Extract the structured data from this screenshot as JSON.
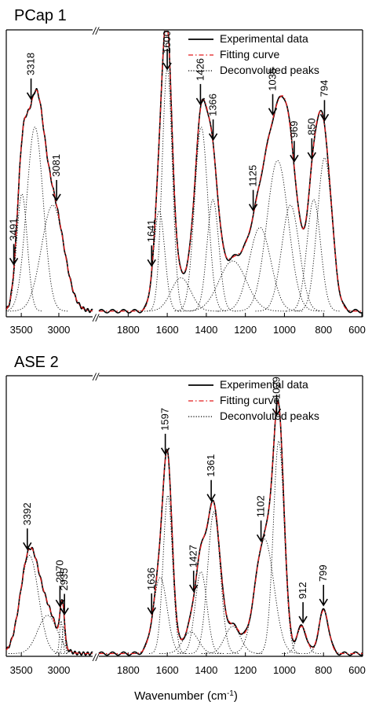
{
  "chart_data": {
    "type": "line",
    "xlabel": "Wavenumber (cm",
    "xlabel_sup": "-1",
    "xlabel_close": ")",
    "legend": [
      {
        "label": "Experimental data",
        "style": "solid",
        "color": "#000000"
      },
      {
        "label": "Fitting curve",
        "style": "dash-dot",
        "color": "#e41a1c"
      },
      {
        "label": "Deconvoluted peaks",
        "style": "dotted",
        "color": "#000000"
      }
    ],
    "axis_break_marker": "//",
    "panels": [
      {
        "title": "PCap 1",
        "x_left_range": [
          3700,
          2550
        ],
        "x_right_range": [
          1950,
          600
        ],
        "x_ticks_left": [
          "3500",
          "3000"
        ],
        "x_ticks_right": [
          "1800",
          "1600",
          "1400",
          "1200",
          "1000",
          "800",
          "600"
        ],
        "baseline": 0.02,
        "peaks": [
          {
            "center": 3491,
            "height": 0.42,
            "width": 70
          },
          {
            "center": 3318,
            "height": 0.66,
            "width": 110
          },
          {
            "center": 3081,
            "height": 0.38,
            "width": 150
          },
          {
            "center": 1641,
            "height": 0.36,
            "width": 28
          },
          {
            "center": 1600,
            "height": 0.87,
            "width": 26
          },
          {
            "center": 1426,
            "height": 0.66,
            "width": 34
          },
          {
            "center": 1366,
            "height": 0.4,
            "width": 30
          },
          {
            "center": 1125,
            "height": 0.3,
            "width": 55
          },
          {
            "center": 1035,
            "height": 0.54,
            "width": 55
          },
          {
            "center": 969,
            "height": 0.38,
            "width": 45
          },
          {
            "center": 850,
            "height": 0.4,
            "width": 35
          },
          {
            "center": 794,
            "height": 0.55,
            "width": 38
          },
          {
            "center": 1265,
            "height": 0.18,
            "width": 70
          },
          {
            "center": 1530,
            "height": 0.12,
            "width": 50
          }
        ],
        "annotations": [
          {
            "label": "3491",
            "x": 3600
          },
          {
            "label": "3318",
            "x": 3370
          },
          {
            "label": "3081",
            "x": 3030
          },
          {
            "label": "1641",
            "x": 1680
          },
          {
            "label": "1600",
            "x": 1600
          },
          {
            "label": "1426",
            "x": 1430
          },
          {
            "label": "1366",
            "x": 1365
          },
          {
            "label": "1125",
            "x": 1160
          },
          {
            "label": "1035",
            "x": 1060
          },
          {
            "label": "969",
            "x": 950
          },
          {
            "label": "850",
            "x": 860
          },
          {
            "label": "794",
            "x": 795
          }
        ]
      },
      {
        "title": "ASE 2",
        "x_left_range": [
          3700,
          2550
        ],
        "x_right_range": [
          1950,
          600
        ],
        "x_ticks_left": [
          "3500",
          "3000"
        ],
        "x_ticks_right": [
          "1800",
          "1600",
          "1400",
          "1200",
          "1000",
          "800",
          "600"
        ],
        "baseline": 0.01,
        "peaks": [
          {
            "center": 3392,
            "height": 0.36,
            "width": 120
          },
          {
            "center": 3150,
            "height": 0.14,
            "width": 130
          },
          {
            "center": 2970,
            "height": 0.12,
            "width": 20
          },
          {
            "center": 2935,
            "height": 0.1,
            "width": 18
          },
          {
            "center": 1636,
            "height": 0.28,
            "width": 35
          },
          {
            "center": 1597,
            "height": 0.58,
            "width": 24
          },
          {
            "center": 1427,
            "height": 0.3,
            "width": 30
          },
          {
            "center": 1361,
            "height": 0.52,
            "width": 32
          },
          {
            "center": 1102,
            "height": 0.42,
            "width": 48
          },
          {
            "center": 1029,
            "height": 0.78,
            "width": 28
          },
          {
            "center": 912,
            "height": 0.1,
            "width": 25
          },
          {
            "center": 799,
            "height": 0.16,
            "width": 25
          },
          {
            "center": 1265,
            "height": 0.1,
            "width": 40
          },
          {
            "center": 1480,
            "height": 0.08,
            "width": 40
          }
        ],
        "annotations": [
          {
            "label": "3392",
            "x": 3420
          },
          {
            "label": "2970",
            "x": 2985
          },
          {
            "label": "2935",
            "x": 2925
          },
          {
            "label": "1636",
            "x": 1680
          },
          {
            "label": "1597",
            "x": 1610
          },
          {
            "label": "1427",
            "x": 1465
          },
          {
            "label": "1361",
            "x": 1375
          },
          {
            "label": "1102",
            "x": 1120
          },
          {
            "label": "1029",
            "x": 1040
          },
          {
            "label": "912",
            "x": 905
          },
          {
            "label": "799",
            "x": 800
          }
        ]
      }
    ]
  }
}
